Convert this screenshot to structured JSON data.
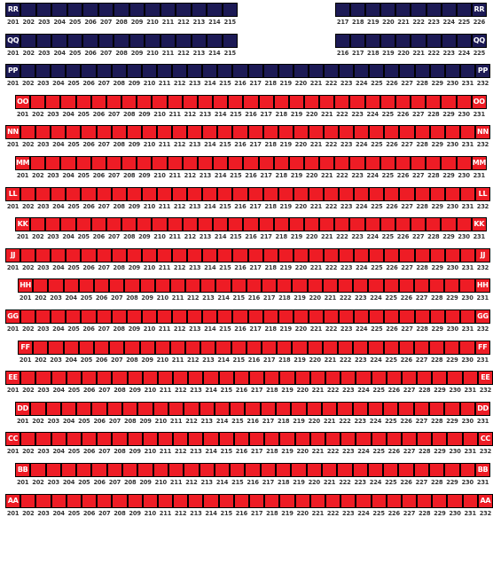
{
  "seat_map": {
    "section_title": "",
    "colors": {
      "available": "#ee1c25",
      "unavailable": "#1c1a55",
      "seat_border": "#000000",
      "number_text": "#333333"
    },
    "rows": [
      {
        "label": "RR",
        "status": "unavailable",
        "blocks": [
          {
            "first_seat": 201,
            "last_seat": 215,
            "labels": [
              "left"
            ]
          },
          {
            "first_seat": 217,
            "last_seat": 226,
            "labels": [
              "right"
            ]
          }
        ]
      },
      {
        "label": "QQ",
        "status": "unavailable",
        "blocks": [
          {
            "first_seat": 201,
            "last_seat": 215,
            "labels": [
              "left"
            ]
          },
          {
            "first_seat": 216,
            "last_seat": 225,
            "labels": [
              "right"
            ]
          }
        ]
      },
      {
        "label": "PP",
        "status": "unavailable",
        "blocks": [
          {
            "first_seat": 201,
            "last_seat": 232,
            "labels": [
              "left",
              "right"
            ]
          }
        ]
      },
      {
        "label": "OO",
        "status": "available",
        "blocks": [
          {
            "first_seat": 201,
            "last_seat": 231,
            "labels": [
              "left",
              "right"
            ]
          }
        ]
      },
      {
        "label": "NN",
        "status": "available",
        "blocks": [
          {
            "first_seat": 201,
            "last_seat": 232,
            "labels": [
              "left",
              "right"
            ]
          }
        ]
      },
      {
        "label": "MM",
        "status": "available",
        "blocks": [
          {
            "first_seat": 201,
            "last_seat": 231,
            "labels": [
              "left",
              "right"
            ]
          }
        ]
      },
      {
        "label": "LL",
        "status": "available",
        "blocks": [
          {
            "first_seat": 201,
            "last_seat": 232,
            "labels": [
              "left",
              "right"
            ]
          }
        ]
      },
      {
        "label": "KK",
        "status": "available",
        "blocks": [
          {
            "first_seat": 201,
            "last_seat": 231,
            "labels": [
              "left",
              "right"
            ]
          }
        ]
      },
      {
        "label": "JJ",
        "status": "available",
        "blocks": [
          {
            "first_seat": 201,
            "last_seat": 232,
            "labels": [
              "left",
              "right"
            ]
          }
        ]
      },
      {
        "label": "HH",
        "status": "available",
        "blocks": [
          {
            "first_seat": 201,
            "last_seat": 231,
            "labels": [
              "left",
              "right"
            ]
          }
        ]
      },
      {
        "label": "GG",
        "status": "available",
        "blocks": [
          {
            "first_seat": 201,
            "last_seat": 232,
            "labels": [
              "left",
              "right"
            ]
          }
        ]
      },
      {
        "label": "FF",
        "status": "available",
        "blocks": [
          {
            "first_seat": 201,
            "last_seat": 231,
            "labels": [
              "left",
              "right"
            ]
          }
        ]
      },
      {
        "label": "EE",
        "status": "available",
        "blocks": [
          {
            "first_seat": 201,
            "last_seat": 232,
            "labels": [
              "left",
              "right"
            ]
          }
        ]
      },
      {
        "label": "DD",
        "status": "available",
        "blocks": [
          {
            "first_seat": 201,
            "last_seat": 231,
            "labels": [
              "left",
              "right"
            ]
          }
        ]
      },
      {
        "label": "CC",
        "status": "available",
        "blocks": [
          {
            "first_seat": 201,
            "last_seat": 232,
            "labels": [
              "left",
              "right"
            ]
          }
        ]
      },
      {
        "label": "BB",
        "status": "available",
        "blocks": [
          {
            "first_seat": 201,
            "last_seat": 231,
            "labels": [
              "left",
              "right"
            ]
          }
        ]
      },
      {
        "label": "AA",
        "status": "available",
        "blocks": [
          {
            "first_seat": 201,
            "last_seat": 232,
            "labels": [
              "left",
              "right"
            ]
          }
        ]
      }
    ]
  }
}
